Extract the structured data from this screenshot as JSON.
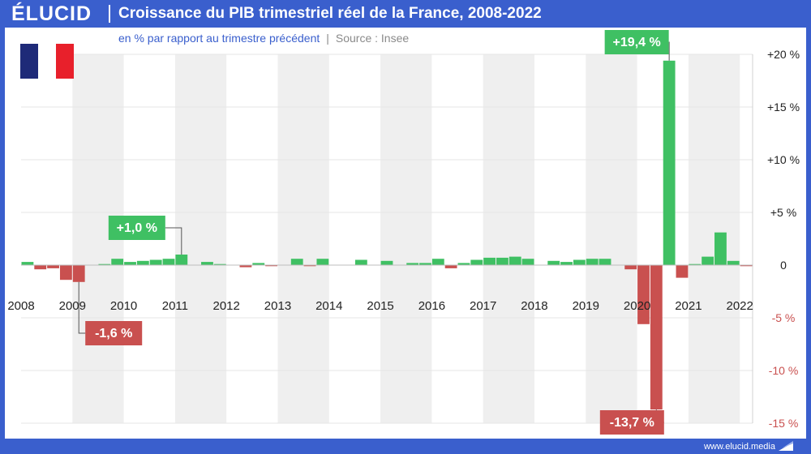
{
  "header": {
    "logo": "ÉLUCID",
    "title": "Croissance du PIB trimestriel réel de la France, 2008-2022"
  },
  "footer": {
    "url": "www.elucid.media"
  },
  "colors": {
    "positive": "#3fc063",
    "negative": "#c9504f",
    "band": "#efefef",
    "brand": "#3a5fcd",
    "flag_blue": "#1e2a78",
    "flag_white": "#ffffff",
    "flag_red": "#e8202b"
  },
  "chart_data": {
    "type": "bar",
    "title": "Croissance du PIB trimestriel réel de la France, 2008-2022",
    "subtitle": "en % par rapport au trimestre précédent",
    "source": "Source : Insee",
    "ylim": [
      -15,
      20
    ],
    "y_ticks": [
      {
        "v": 20,
        "label": "+20 %"
      },
      {
        "v": 15,
        "label": "+15 %"
      },
      {
        "v": 10,
        "label": "+10 %"
      },
      {
        "v": 5,
        "label": "+5 %"
      },
      {
        "v": 0,
        "label": "0"
      },
      {
        "v": -5,
        "label": "-5 %"
      },
      {
        "v": -10,
        "label": "-10 %"
      },
      {
        "v": -15,
        "label": "-15 %"
      }
    ],
    "year_labels": [
      "2008",
      "2009",
      "2010",
      "2011",
      "2012",
      "2013",
      "2014",
      "2015",
      "2016",
      "2017",
      "2018",
      "2019",
      "2020",
      "2021",
      "2022"
    ],
    "grid": true,
    "series": [
      {
        "values": [
          0.3,
          -0.4,
          -0.3,
          -1.4,
          -1.6,
          0.0,
          0.1,
          0.6,
          0.3,
          0.4,
          0.5,
          0.6,
          1.0,
          0.0,
          0.3,
          0.1,
          0.0,
          -0.2,
          0.2,
          -0.1,
          0.0,
          0.6,
          -0.1,
          0.6,
          0.0,
          0.0,
          0.5,
          0.0,
          0.4,
          0.0,
          0.2,
          0.2,
          0.6,
          -0.3,
          0.2,
          0.5,
          0.7,
          0.7,
          0.8,
          0.6,
          0.0,
          0.4,
          0.3,
          0.5,
          0.6,
          0.6,
          0.0,
          -0.4,
          -5.6,
          -13.7,
          19.4,
          -1.2,
          0.1,
          0.8,
          3.1,
          0.4,
          -0.1
        ]
      }
    ],
    "annotations": [
      {
        "index": 4,
        "label": "-1,6 %",
        "color": "negative"
      },
      {
        "index": 12,
        "label": "+1,0 %",
        "color": "positive"
      },
      {
        "index": 49,
        "label": "-13,7 %",
        "color": "negative"
      },
      {
        "index": 50,
        "label": "+19,4 %",
        "color": "positive"
      }
    ]
  }
}
